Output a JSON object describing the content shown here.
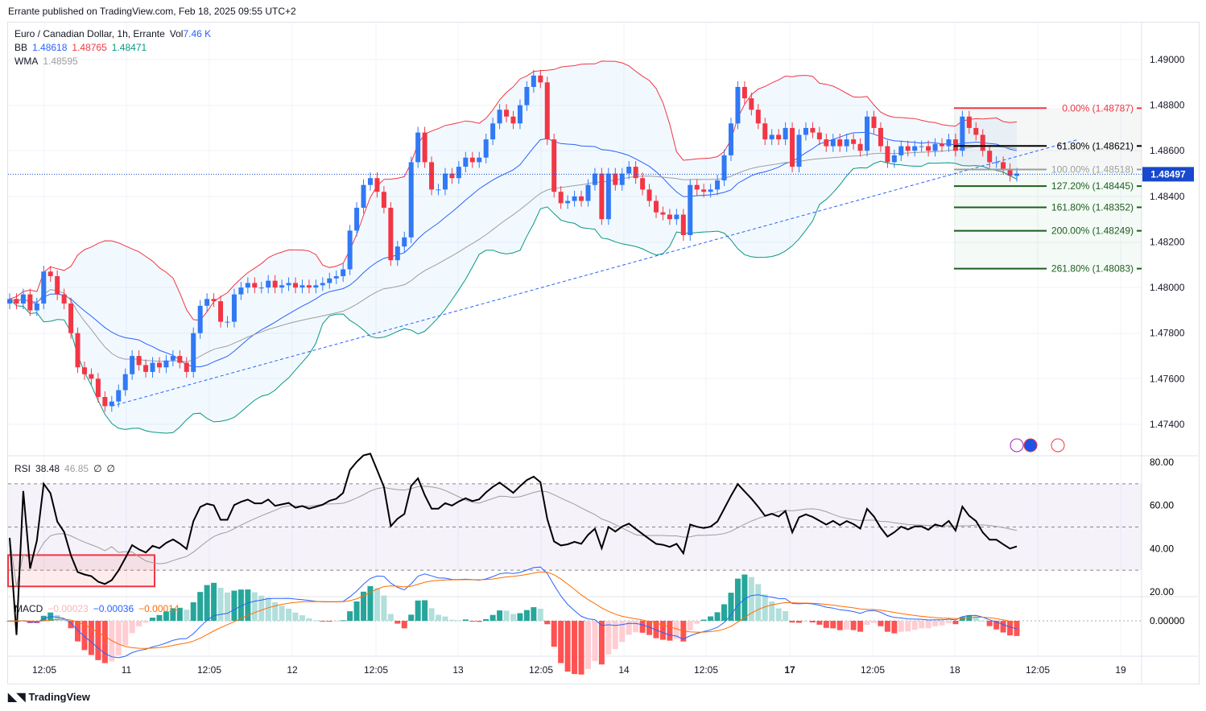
{
  "header": {
    "published": "Errante published on TradingView.com, Feb 18, 2025 09:55 UTC+2"
  },
  "legend": {
    "symbol": "Euro / Canadian Dollar, 1h, Errante",
    "vol_label": "Vol",
    "vol_value": "7.46 K",
    "bb_label": "BB",
    "bb_basis": "1.48618",
    "bb_upper": "1.48765",
    "bb_lower": "1.48471",
    "wma_label": "WMA",
    "wma_value": "1.48595"
  },
  "rsi": {
    "label": "RSI",
    "value": "38.48",
    "ma": "46.85",
    "extra1": "∅",
    "extra2": "∅",
    "ticks": [
      "80.00",
      "60.00",
      "40.00",
      "20.00"
    ]
  },
  "macd": {
    "label": "MACD",
    "hist": "−0.00023",
    "macd": "−0.00036",
    "signal": "−0.00014",
    "tick": "0.00000"
  },
  "footer": {
    "brand": "TradingView"
  },
  "colors": {
    "up": "#3179f5",
    "down": "#f23645",
    "bb_basis": "#2962ff",
    "bb_upper": "#f23645",
    "bb_lower": "#089981",
    "wma": "#9e9e9e",
    "rsi": "#000000",
    "macd": "#2962ff",
    "signal": "#ff6d00",
    "price_badge": "#1848cc"
  },
  "chart_data": {
    "type": "candlestick",
    "symbol": "EURCAD",
    "interval": "1h",
    "yaxis_ticks": [
      "1.49000",
      "1.48800",
      "1.48600",
      "1.48400",
      "1.48200",
      "1.48000",
      "1.47800",
      "1.47600",
      "1.47400"
    ],
    "ylim": [
      1.4728,
      1.4918
    ],
    "xaxis_ticks": [
      "12:05",
      "11",
      "12:05",
      "12",
      "12:05",
      "13",
      "12:05",
      "14",
      "12:05",
      "17",
      "12:05",
      "18",
      "12:05",
      "19"
    ],
    "last_price": "1.48497",
    "closes": [
      1.4795,
      1.4793,
      1.4797,
      1.479,
      1.4793,
      1.4807,
      1.4805,
      1.4797,
      1.4793,
      1.478,
      1.4765,
      1.4762,
      1.476,
      1.4752,
      1.4748,
      1.475,
      1.4755,
      1.4762,
      1.477,
      1.4766,
      1.4763,
      1.4767,
      1.4765,
      1.4768,
      1.477,
      1.4767,
      1.4763,
      1.478,
      1.4792,
      1.4795,
      1.4794,
      1.4785,
      1.4785,
      1.4797,
      1.48,
      1.4802,
      1.48,
      1.48,
      1.4803,
      1.48,
      1.4801,
      1.4802,
      1.48,
      1.4801,
      1.48,
      1.4801,
      1.4802,
      1.4804,
      1.4805,
      1.4808,
      1.4825,
      1.4835,
      1.4845,
      1.4848,
      1.4842,
      1.4835,
      1.4812,
      1.4818,
      1.4822,
      1.4855,
      1.4868,
      1.4855,
      1.4843,
      1.4843,
      1.485,
      1.4848,
      1.4853,
      1.4857,
      1.4855,
      1.4857,
      1.4865,
      1.4872,
      1.4878,
      1.4875,
      1.4872,
      1.488,
      1.4888,
      1.4893,
      1.489,
      1.4865,
      1.4842,
      1.4837,
      1.4838,
      1.484,
      1.4838,
      1.4845,
      1.485,
      1.483,
      1.485,
      1.4845,
      1.485,
      1.4853,
      1.4848,
      1.4843,
      1.4838,
      1.4833,
      1.4832,
      1.483,
      1.4832,
      1.4823,
      1.4845,
      1.4843,
      1.4842,
      1.4843,
      1.4847,
      1.4858,
      1.4872,
      1.4888,
      1.4883,
      1.4878,
      1.4872,
      1.4865,
      1.4867,
      1.4865,
      1.487,
      1.4853,
      1.4867,
      1.487,
      1.4868,
      1.4865,
      1.4862,
      1.4865,
      1.4862,
      1.4865,
      1.4863,
      1.486,
      1.4875,
      1.487,
      1.4862,
      1.4855,
      1.4858,
      1.4862,
      1.486,
      1.4862,
      1.4862,
      1.486,
      1.4863,
      1.4862,
      1.4865,
      1.486,
      1.4875,
      1.487,
      1.4867,
      1.486,
      1.4855,
      1.4855,
      1.4852,
      1.4849,
      1.485
    ],
    "first_open": 1.4793,
    "fib_levels": [
      {
        "label": "0.00% (1.48787)",
        "price": 1.48787,
        "color": "#f23645"
      },
      {
        "label": "61.80% (1.48621)",
        "price": 1.48621,
        "color": "#000000"
      },
      {
        "label": "100.00% (1.48518)",
        "price": 1.48518,
        "color": "#9e9e9e"
      },
      {
        "label": "127.20% (1.48445)",
        "price": 1.48445,
        "color": "#1b5e20"
      },
      {
        "label": "161.80% (1.48352)",
        "price": 1.48352,
        "color": "#1b5e20"
      },
      {
        "label": "200.00% (1.48249)",
        "price": 1.48249,
        "color": "#1b5e20"
      },
      {
        "label": "261.80% (1.48083)",
        "price": 1.48083,
        "color": "#1b5e20"
      }
    ],
    "trendline": {
      "from": 1.4748,
      "to": 1.4865,
      "style": "dashed"
    },
    "rsi_levels": [
      70,
      50,
      30
    ],
    "rsi_ylim": [
      20,
      80
    ]
  }
}
